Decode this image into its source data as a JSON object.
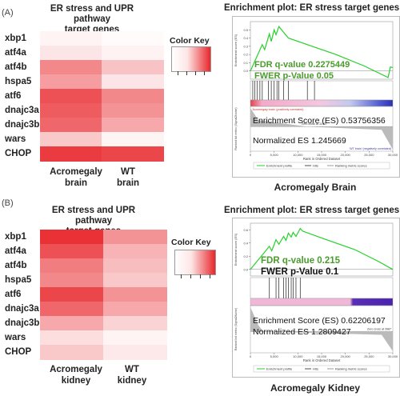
{
  "panels": [
    {
      "label": "(A)",
      "heatmap_title": [
        "ER stress and UPR pathway",
        "target genes"
      ],
      "col_labels": [
        [
          "Acromegaly",
          "brain"
        ],
        [
          "WT",
          "brain"
        ]
      ],
      "color_key": "Color Key",
      "gsea_title": "Enrichment plot: ER stress target genes",
      "fdr_q": "FDR q-value 0.2275449",
      "fwer_p": "FWER p-Value 0.05",
      "es": "Enrichment Score (ES) 0.53756356",
      "nes": "Normalized ES 1.245669",
      "caption": "Acromegaly Brain",
      "axis_top_ylabel": "Enrichment score (ES)",
      "axis_bottom_ylabel": "Ranked list metric (Signal2Noise)",
      "xlabel": "Rank in Ordered Dataset",
      "pos_label": "'Acromegaly brain' (positively correlated)",
      "neg_label": "'WT brain' (negatively correlated)",
      "zero_cross": "Zero cross at 11907",
      "legend": [
        "Enrichment profile",
        "Hits",
        "Ranking metric scores"
      ]
    },
    {
      "label": "(B)",
      "heatmap_title": [
        "ER stress and UPR pathway",
        "target genes"
      ],
      "col_labels": [
        [
          "Acromegaly",
          "kidney"
        ],
        [
          "WT",
          "kidney"
        ]
      ],
      "color_key": "Color Key",
      "gsea_title": "Enrichment plot: ER stress target genes",
      "fdr_q": "FDR q-value 0.215",
      "fwer_p": "FWER p-Value 0.1",
      "es": "Enrichment Score (ES) 0.62206197",
      "nes": "Normalized ES 1.2809427",
      "caption": "Acromegaly Kidney",
      "axis_top_ylabel": "Enrichment score (ES)",
      "axis_bottom_ylabel": "Ranked list metric (Signal2Noise)",
      "xlabel": "Rank in Ordered Dataset",
      "zero_cross": "Zero cross at 2687",
      "legend": [
        "Enrichment profile",
        "Hits",
        "Ranking metric scores"
      ]
    }
  ],
  "chart_data": [
    {
      "type": "heatmap",
      "rows": [
        "xbp1",
        "atf4a",
        "atf4b",
        "hspa5",
        "atf6",
        "dnajc3a",
        "dnajc3b",
        "wars",
        "CHOP"
      ],
      "columns": [
        "Acromegaly brain",
        "WT brain"
      ],
      "values": [
        [
          0.05,
          0.02
        ],
        [
          0.12,
          0.06
        ],
        [
          0.55,
          0.28
        ],
        [
          0.45,
          0.12
        ],
        [
          0.8,
          0.55
        ],
        [
          0.75,
          0.5
        ],
        [
          0.7,
          0.4
        ],
        [
          0.25,
          0.05
        ],
        [
          0.9,
          0.85
        ]
      ],
      "color_low": "#ffffff",
      "color_high": "#e8262b"
    },
    {
      "type": "line",
      "title": "Enrichment plot: ER stress target genes",
      "xlabel": "Rank in Ordered Dataset",
      "ylabel": "Enrichment score (ES)",
      "xlim": [
        0,
        30000
      ],
      "ylim": [
        -0.1,
        0.6
      ],
      "x": [
        0,
        2500,
        3000,
        4000,
        4400,
        5000,
        5400,
        6000,
        7000,
        8000,
        12000,
        18000,
        24000,
        29000,
        29500,
        30000
      ],
      "y": [
        0.0,
        0.32,
        0.26,
        0.45,
        0.36,
        0.5,
        0.44,
        0.54,
        0.47,
        0.4,
        0.32,
        0.2,
        0.06,
        -0.08,
        0.05,
        0.04
      ],
      "hits": [
        500,
        900,
        1400,
        2000,
        2500,
        3800,
        4400,
        5000,
        5600,
        6000,
        7000,
        8000,
        12000,
        13500
      ],
      "ranked_metric_ticks": [
        -2,
        0,
        2
      ]
    },
    {
      "type": "heatmap",
      "rows": [
        "xbp1",
        "atf4a",
        "atf4b",
        "hspa5",
        "atf6",
        "dnajc3a",
        "dnajc3b",
        "wars",
        "CHOP"
      ],
      "columns": [
        "Acromegaly kidney",
        "WT kidney"
      ],
      "values": [
        [
          0.95,
          0.5
        ],
        [
          0.8,
          0.35
        ],
        [
          0.6,
          0.3
        ],
        [
          0.55,
          0.25
        ],
        [
          0.85,
          0.5
        ],
        [
          0.7,
          0.4
        ],
        [
          0.4,
          0.2
        ],
        [
          0.15,
          0.05
        ],
        [
          0.25,
          0.1
        ]
      ],
      "color_low": "#ffffff",
      "color_high": "#e8262b"
    },
    {
      "type": "line",
      "title": "Enrichment plot: ER stress target genes",
      "xlabel": "Rank in Ordered Dataset",
      "ylabel": "Enrichment score (ES)",
      "xlim": [
        0,
        30000
      ],
      "ylim": [
        -0.1,
        0.7
      ],
      "x": [
        0,
        4000,
        4500,
        5400,
        6000,
        7000,
        7500,
        8000,
        8600,
        9000,
        9600,
        10500,
        11000,
        16000,
        22000,
        27000,
        30000
      ],
      "y": [
        0.0,
        0.35,
        0.28,
        0.45,
        0.38,
        0.5,
        0.44,
        0.55,
        0.49,
        0.56,
        0.5,
        0.62,
        0.58,
        0.45,
        0.3,
        0.12,
        0.0
      ],
      "hits": [
        4000,
        5400,
        6000,
        7000,
        7500,
        8000,
        8600,
        9000,
        9600,
        10500
      ],
      "ranked_metric_ticks": [
        -2,
        0,
        2
      ]
    }
  ]
}
